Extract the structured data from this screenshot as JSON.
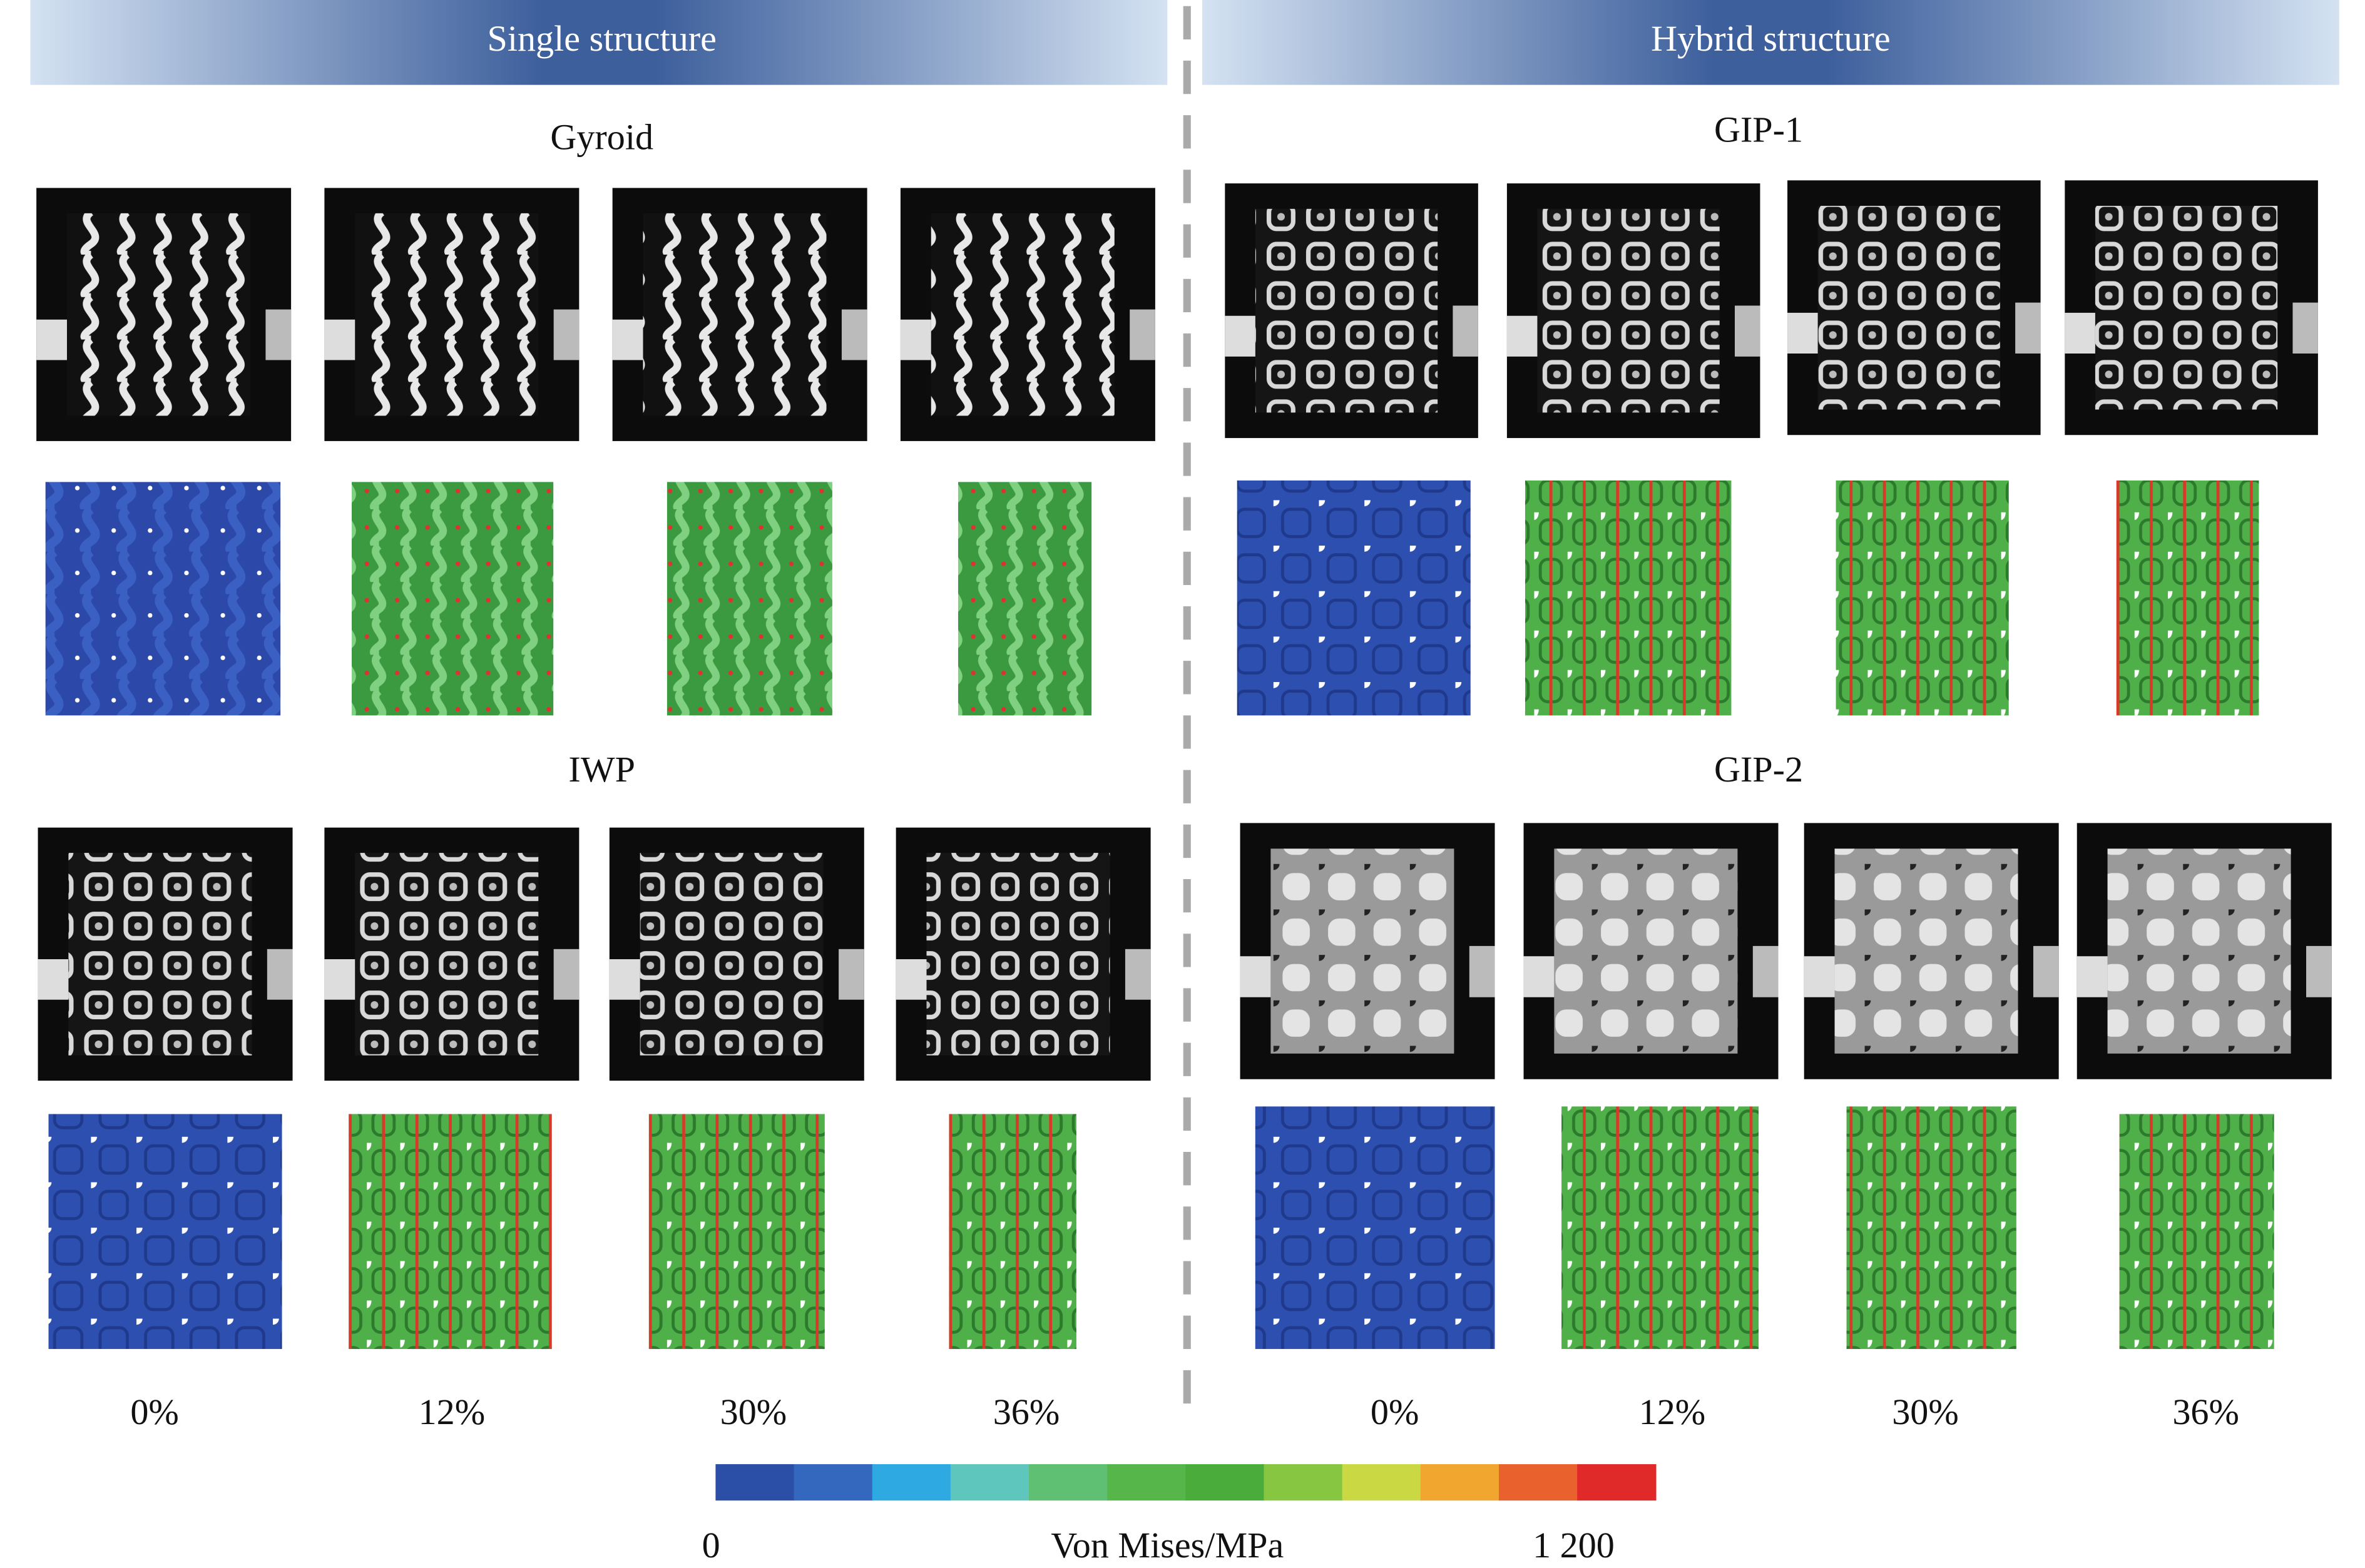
{
  "headers": [
    "Single structure",
    "Hybrid structure"
  ],
  "panels": [
    {
      "title": "Gyroid"
    },
    {
      "title": "GIP-1"
    },
    {
      "title": "IWP"
    },
    {
      "title": "GIP-2"
    }
  ],
  "strains": [
    "0%",
    "12%",
    "30%",
    "36%"
  ],
  "colorbar": {
    "min_label": "0",
    "label": "Von Mises/MPa",
    "max_label": "1 200",
    "colors": [
      "#2b4fa6",
      "#3467be",
      "#2fa9e2",
      "#5fc6bd",
      "#5fbf72",
      "#56b649",
      "#4aad3b",
      "#86c640",
      "#c9d843",
      "#f1a630",
      "#e9612d",
      "#e02a2a"
    ]
  }
}
